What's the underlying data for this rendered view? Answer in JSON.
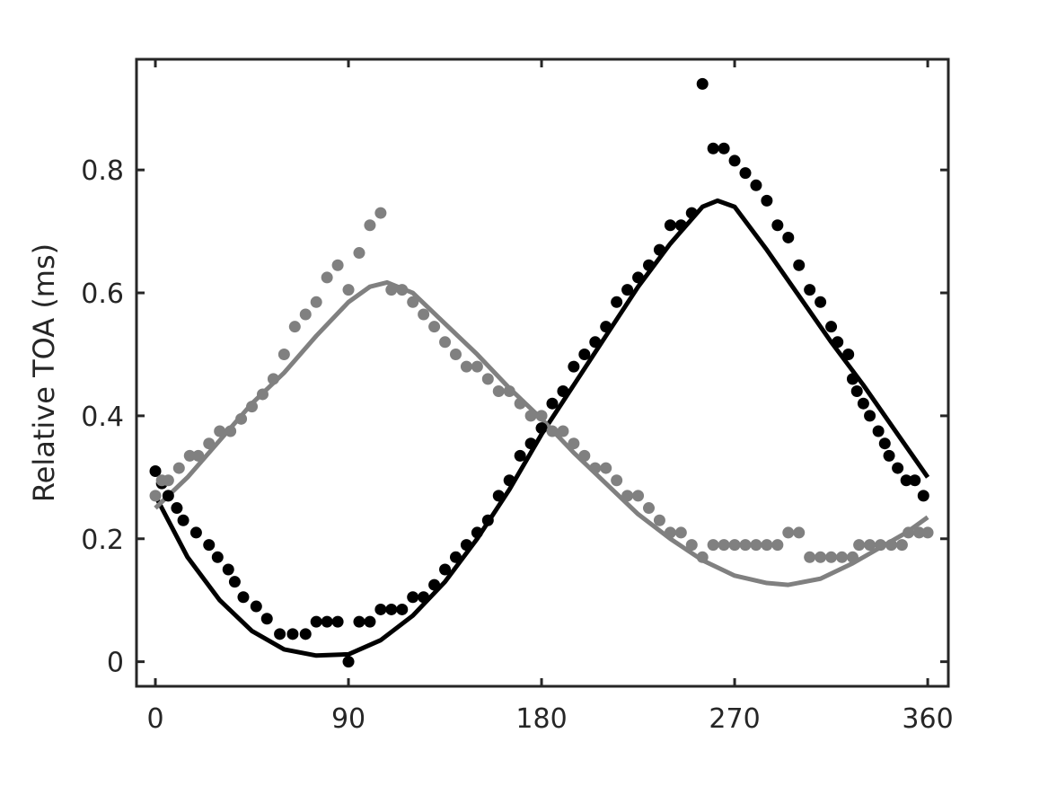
{
  "chart_data": {
    "type": "scatter",
    "title": "",
    "xlabel": "",
    "ylabel": "Relative TOA (ms)",
    "xlim": [
      -8.8,
      369.6
    ],
    "ylim": [
      -0.04,
      0.98
    ],
    "xticks": [
      0,
      90,
      180,
      270,
      360
    ],
    "xtick_labels": [
      "0",
      "90",
      "180",
      "270",
      "360"
    ],
    "yticks": [
      0,
      0.2,
      0.4,
      0.6,
      0.8
    ],
    "ytick_labels": [
      "0",
      "0.2",
      "0.4",
      "0.6",
      "0.8"
    ],
    "grid": false,
    "legend": "none",
    "series": [
      {
        "color": "#000000",
        "points": [
          [
            0,
            0.31
          ],
          [
            3,
            0.29
          ],
          [
            6,
            0.27
          ],
          [
            10,
            0.25
          ],
          [
            13,
            0.23
          ],
          [
            19,
            0.21
          ],
          [
            25,
            0.19
          ],
          [
            29,
            0.17
          ],
          [
            34,
            0.15
          ],
          [
            37,
            0.13
          ],
          [
            41,
            0.105
          ],
          [
            47,
            0.09
          ],
          [
            52,
            0.07
          ],
          [
            58,
            0.045
          ],
          [
            64,
            0.045
          ],
          [
            70,
            0.045
          ],
          [
            75,
            0.065
          ],
          [
            80,
            0.065
          ],
          [
            85,
            0.065
          ],
          [
            90,
            0.0
          ],
          [
            95,
            0.065
          ],
          [
            100,
            0.065
          ],
          [
            105,
            0.085
          ],
          [
            110,
            0.085
          ],
          [
            115,
            0.085
          ],
          [
            120,
            0.105
          ],
          [
            125,
            0.105
          ],
          [
            130,
            0.125
          ],
          [
            135,
            0.15
          ],
          [
            140,
            0.17
          ],
          [
            145,
            0.19
          ],
          [
            150,
            0.21
          ],
          [
            155,
            0.23
          ],
          [
            160,
            0.27
          ],
          [
            165,
            0.295
          ],
          [
            170,
            0.335
          ],
          [
            175,
            0.355
          ],
          [
            180,
            0.38
          ],
          [
            185,
            0.42
          ],
          [
            190,
            0.44
          ],
          [
            195,
            0.48
          ],
          [
            200,
            0.5
          ],
          [
            205,
            0.52
          ],
          [
            210,
            0.545
          ],
          [
            215,
            0.585
          ],
          [
            220,
            0.605
          ],
          [
            225,
            0.625
          ],
          [
            230,
            0.645
          ],
          [
            235,
            0.67
          ],
          [
            240,
            0.71
          ],
          [
            245,
            0.71
          ],
          [
            250,
            0.73
          ],
          [
            255,
            0.94
          ],
          [
            260,
            0.835
          ],
          [
            265,
            0.835
          ],
          [
            270,
            0.815
          ],
          [
            275,
            0.795
          ],
          [
            280,
            0.775
          ],
          [
            285,
            0.75
          ],
          [
            290,
            0.71
          ],
          [
            295,
            0.69
          ],
          [
            300,
            0.645
          ],
          [
            305,
            0.605
          ],
          [
            310,
            0.585
          ],
          [
            315,
            0.545
          ],
          [
            318,
            0.52
          ],
          [
            323,
            0.5
          ],
          [
            325,
            0.46
          ],
          [
            327,
            0.44
          ],
          [
            330,
            0.42
          ],
          [
            333,
            0.4
          ],
          [
            337,
            0.375
          ],
          [
            340,
            0.355
          ],
          [
            342,
            0.335
          ],
          [
            346,
            0.315
          ],
          [
            350,
            0.295
          ],
          [
            354,
            0.295
          ],
          [
            358,
            0.27
          ]
        ],
        "fit": [
          [
            0,
            0.27
          ],
          [
            15,
            0.17
          ],
          [
            30,
            0.1
          ],
          [
            45,
            0.05
          ],
          [
            60,
            0.02
          ],
          [
            75,
            0.01
          ],
          [
            90,
            0.012
          ],
          [
            105,
            0.035
          ],
          [
            120,
            0.075
          ],
          [
            135,
            0.13
          ],
          [
            150,
            0.2
          ],
          [
            165,
            0.28
          ],
          [
            180,
            0.37
          ],
          [
            195,
            0.45
          ],
          [
            210,
            0.53
          ],
          [
            225,
            0.61
          ],
          [
            240,
            0.68
          ],
          [
            255,
            0.74
          ],
          [
            262,
            0.75
          ],
          [
            270,
            0.74
          ],
          [
            285,
            0.67
          ],
          [
            300,
            0.595
          ],
          [
            315,
            0.52
          ],
          [
            330,
            0.45
          ],
          [
            345,
            0.375
          ],
          [
            360,
            0.3
          ]
        ]
      },
      {
        "color": "#808080",
        "points": [
          [
            0,
            0.27
          ],
          [
            3,
            0.295
          ],
          [
            6,
            0.295
          ],
          [
            11,
            0.315
          ],
          [
            16,
            0.335
          ],
          [
            20,
            0.335
          ],
          [
            25,
            0.355
          ],
          [
            30,
            0.375
          ],
          [
            35,
            0.375
          ],
          [
            40,
            0.395
          ],
          [
            45,
            0.415
          ],
          [
            50,
            0.435
          ],
          [
            55,
            0.46
          ],
          [
            60,
            0.5
          ],
          [
            65,
            0.545
          ],
          [
            70,
            0.565
          ],
          [
            75,
            0.585
          ],
          [
            80,
            0.625
          ],
          [
            85,
            0.645
          ],
          [
            90,
            0.605
          ],
          [
            95,
            0.665
          ],
          [
            100,
            0.71
          ],
          [
            105,
            0.73
          ],
          [
            110,
            0.605
          ],
          [
            115,
            0.605
          ],
          [
            120,
            0.585
          ],
          [
            125,
            0.565
          ],
          [
            130,
            0.545
          ],
          [
            135,
            0.52
          ],
          [
            140,
            0.5
          ],
          [
            145,
            0.48
          ],
          [
            150,
            0.48
          ],
          [
            155,
            0.46
          ],
          [
            160,
            0.44
          ],
          [
            165,
            0.44
          ],
          [
            170,
            0.42
          ],
          [
            175,
            0.4
          ],
          [
            180,
            0.4
          ],
          [
            185,
            0.375
          ],
          [
            190,
            0.375
          ],
          [
            195,
            0.355
          ],
          [
            200,
            0.335
          ],
          [
            205,
            0.315
          ],
          [
            210,
            0.315
          ],
          [
            215,
            0.295
          ],
          [
            220,
            0.27
          ],
          [
            225,
            0.27
          ],
          [
            230,
            0.25
          ],
          [
            235,
            0.23
          ],
          [
            240,
            0.21
          ],
          [
            245,
            0.21
          ],
          [
            250,
            0.19
          ],
          [
            255,
            0.17
          ],
          [
            260,
            0.19
          ],
          [
            265,
            0.19
          ],
          [
            270,
            0.19
          ],
          [
            275,
            0.19
          ],
          [
            280,
            0.19
          ],
          [
            285,
            0.19
          ],
          [
            290,
            0.19
          ],
          [
            295,
            0.21
          ],
          [
            300,
            0.21
          ],
          [
            305,
            0.17
          ],
          [
            310,
            0.17
          ],
          [
            315,
            0.17
          ],
          [
            320,
            0.17
          ],
          [
            325,
            0.17
          ],
          [
            328,
            0.19
          ],
          [
            333,
            0.19
          ],
          [
            338,
            0.19
          ],
          [
            343,
            0.19
          ],
          [
            348,
            0.19
          ],
          [
            351,
            0.21
          ],
          [
            356,
            0.21
          ],
          [
            360,
            0.21
          ]
        ],
        "fit": [
          [
            0,
            0.25
          ],
          [
            15,
            0.3
          ],
          [
            30,
            0.36
          ],
          [
            45,
            0.42
          ],
          [
            60,
            0.47
          ],
          [
            75,
            0.53
          ],
          [
            90,
            0.585
          ],
          [
            100,
            0.61
          ],
          [
            108,
            0.617
          ],
          [
            120,
            0.6
          ],
          [
            135,
            0.55
          ],
          [
            150,
            0.5
          ],
          [
            165,
            0.445
          ],
          [
            180,
            0.395
          ],
          [
            195,
            0.34
          ],
          [
            210,
            0.29
          ],
          [
            225,
            0.24
          ],
          [
            240,
            0.2
          ],
          [
            255,
            0.165
          ],
          [
            270,
            0.14
          ],
          [
            285,
            0.128
          ],
          [
            295,
            0.125
          ],
          [
            310,
            0.135
          ],
          [
            325,
            0.16
          ],
          [
            340,
            0.19
          ],
          [
            350,
            0.21
          ],
          [
            360,
            0.235
          ]
        ]
      }
    ]
  }
}
